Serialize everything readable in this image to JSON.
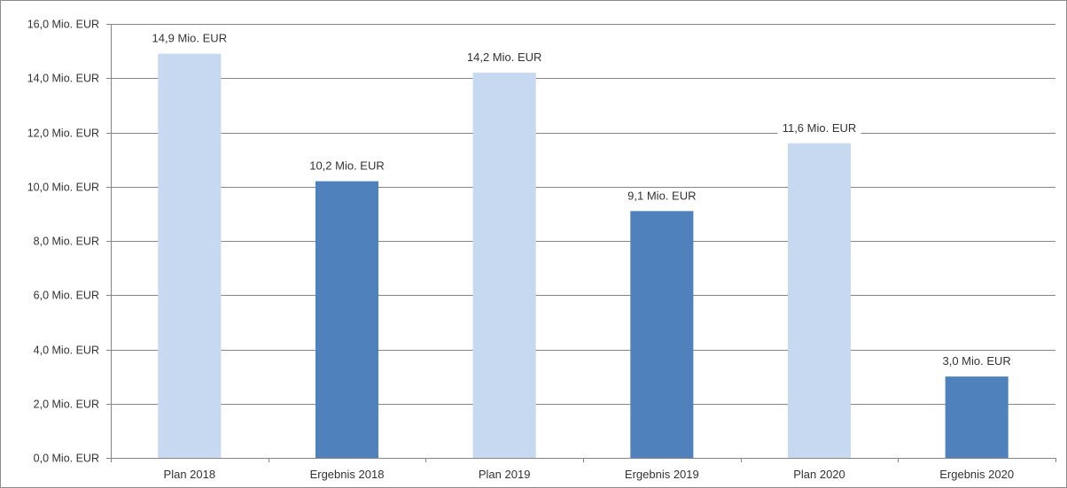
{
  "chart_data": {
    "type": "bar",
    "title": "",
    "xlabel": "",
    "ylabel": "",
    "categories": [
      "Plan 2018",
      "Ergebnis 2018",
      "Plan 2019",
      "Ergebnis 2019",
      "Plan 2020",
      "Ergebnis 2020"
    ],
    "values": [
      14.9,
      10.2,
      14.2,
      9.1,
      11.6,
      3.0
    ],
    "data_labels": [
      "14,9 Mio. EUR",
      "10,2 Mio. EUR",
      "14,2 Mio. EUR",
      "9,1 Mio. EUR",
      "11,6 Mio. EUR",
      "3,0 Mio. EUR"
    ],
    "bar_kind": [
      "plan",
      "result",
      "plan",
      "result",
      "plan",
      "result"
    ],
    "ylim": [
      0,
      16
    ],
    "y_ticks": [
      0,
      2,
      4,
      6,
      8,
      10,
      12,
      14,
      16
    ],
    "y_tick_labels": [
      "0,0 Mio. EUR",
      "2,0 Mio. EUR",
      "4,0 Mio. EUR",
      "6,0 Mio. EUR",
      "8,0 Mio. EUR",
      "10,0 Mio. EUR",
      "12,0 Mio. EUR",
      "14,0 Mio. EUR",
      "16,0 Mio. EUR"
    ],
    "grid": true,
    "legend": "none",
    "colors": {
      "plan": "#c6d9f0",
      "result": "#4f81bd",
      "grid": "#868686",
      "axis": "#868686"
    }
  }
}
